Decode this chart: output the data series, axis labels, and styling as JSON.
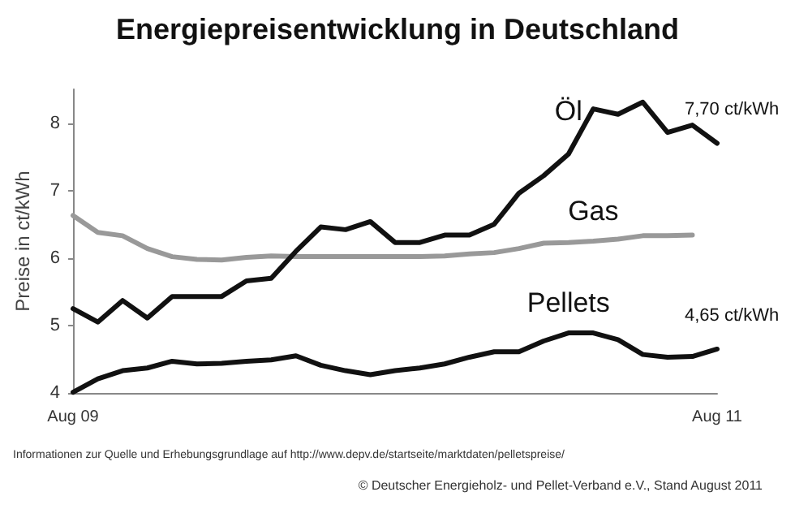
{
  "chart_data": {
    "type": "line",
    "title": "Energiepreisentwicklung in Deutschland",
    "ylabel": "Preise in ct/kWh",
    "categories": [
      "Aug 09",
      null,
      null,
      null,
      null,
      null,
      null,
      null,
      null,
      null,
      null,
      null,
      null,
      null,
      null,
      null,
      null,
      null,
      null,
      null,
      null,
      null,
      null,
      null,
      null,
      null,
      "Aug 11"
    ],
    "series": [
      {
        "name": "Öl",
        "color": "#111111",
        "values": [
          5.25,
          5.05,
          5.37,
          5.11,
          5.43,
          5.43,
          5.43,
          5.66,
          5.7,
          6.1,
          6.46,
          6.42,
          6.54,
          6.23,
          6.23,
          6.34,
          6.34,
          6.5,
          6.96,
          7.22,
          7.54,
          8.21,
          8.13,
          8.31,
          7.86,
          7.97,
          7.7
        ]
      },
      {
        "name": "Gas",
        "color": "#999999",
        "values": [
          6.63,
          6.38,
          6.33,
          6.14,
          6.02,
          5.98,
          5.97,
          6.01,
          6.03,
          6.02,
          6.02,
          6.02,
          6.02,
          6.02,
          6.02,
          6.03,
          6.06,
          6.08,
          6.14,
          6.22,
          6.23,
          6.25,
          6.28,
          6.33,
          6.33,
          6.34,
          null
        ]
      },
      {
        "name": "Pellets",
        "color": "#111111",
        "values": [
          4.01,
          4.21,
          4.33,
          4.37,
          4.47,
          4.43,
          4.44,
          4.47,
          4.49,
          4.55,
          4.41,
          4.33,
          4.27,
          4.33,
          4.37,
          4.43,
          4.53,
          4.61,
          4.61,
          4.77,
          4.89,
          4.89,
          4.79,
          4.57,
          4.53,
          4.54,
          4.65
        ]
      }
    ],
    "ylim": [
      4,
      8.5
    ],
    "yticks": [
      4,
      5,
      6,
      7,
      8
    ],
    "grid": false,
    "legend": false,
    "marker": "none",
    "line_style": "solid",
    "annotations": [
      {
        "text": "7,70 ct/kWh",
        "x": "Aug 11",
        "y": 7.7
      },
      {
        "text": "4,65 ct/kWh",
        "x": "Aug 11",
        "y": 4.65
      },
      "Informationen zur Quelle und Erhebungsgrundlage auf http://www.depv.de/startseite/marktdaten/pelletspreise/",
      "© Deutscher Energieholz- und Pellet-Verband e.V., Stand August 2011"
    ]
  }
}
